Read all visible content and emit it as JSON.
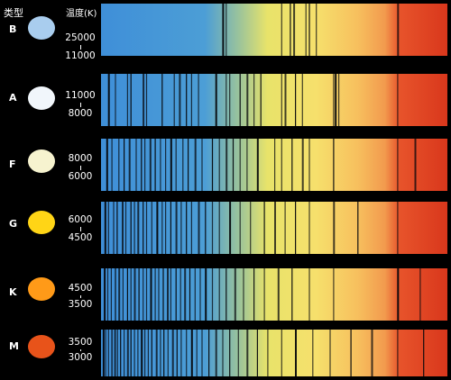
{
  "header": {
    "type_label": "类型",
    "temp_label": "温度(K)"
  },
  "rows": [
    {
      "cls": "B",
      "t_high": "25000",
      "t_low": "11000",
      "star_color": "#a9cdee",
      "lines": [
        0.35,
        0.36,
        0.52,
        0.545,
        0.555,
        0.59,
        0.6,
        0.62,
        0.855
      ]
    },
    {
      "cls": "A",
      "t_high": "11000",
      "t_low": "8000",
      "star_color": "#f1f6fb",
      "lines": [
        0.02,
        0.04,
        0.075,
        0.085,
        0.12,
        0.13,
        0.175,
        0.21,
        0.225,
        0.245,
        0.26,
        0.28,
        0.33,
        0.36,
        0.37,
        0.4,
        0.42,
        0.44,
        0.46,
        0.52,
        0.53,
        0.56,
        0.58,
        0.67,
        0.675,
        0.685,
        0.855
      ]
    },
    {
      "cls": "F",
      "t_high": "8000",
      "t_low": "6000",
      "star_color": "#f6f3cf",
      "lines": [
        0.015,
        0.03,
        0.05,
        0.065,
        0.08,
        0.1,
        0.115,
        0.125,
        0.14,
        0.155,
        0.17,
        0.185,
        0.2,
        0.215,
        0.235,
        0.25,
        0.27,
        0.29,
        0.32,
        0.34,
        0.36,
        0.38,
        0.4,
        0.42,
        0.45,
        0.5,
        0.52,
        0.55,
        0.58,
        0.6,
        0.67,
        0.855,
        0.905
      ]
    },
    {
      "cls": "G",
      "t_high": "6000",
      "t_low": "4500",
      "star_color": "#ffd516",
      "lines": [
        0.01,
        0.02,
        0.035,
        0.045,
        0.06,
        0.07,
        0.085,
        0.095,
        0.105,
        0.12,
        0.13,
        0.145,
        0.16,
        0.175,
        0.185,
        0.2,
        0.215,
        0.23,
        0.245,
        0.26,
        0.28,
        0.3,
        0.32,
        0.34,
        0.37,
        0.4,
        0.43,
        0.47,
        0.5,
        0.53,
        0.56,
        0.6,
        0.67,
        0.74,
        0.855
      ]
    },
    {
      "cls": "K",
      "t_high": "4500",
      "t_low": "3500",
      "star_color": "#ff9a18",
      "lines": [
        0.008,
        0.018,
        0.028,
        0.04,
        0.05,
        0.062,
        0.075,
        0.085,
        0.095,
        0.108,
        0.12,
        0.13,
        0.142,
        0.155,
        0.165,
        0.178,
        0.19,
        0.2,
        0.215,
        0.228,
        0.24,
        0.255,
        0.27,
        0.285,
        0.3,
        0.32,
        0.34,
        0.36,
        0.385,
        0.41,
        0.44,
        0.47,
        0.51,
        0.55,
        0.6,
        0.67,
        0.855,
        0.92
      ]
    },
    {
      "cls": "M",
      "t_high": "3500",
      "t_low": "3000",
      "star_color": "#e8531a",
      "lines": [
        0.005,
        0.012,
        0.02,
        0.03,
        0.038,
        0.046,
        0.055,
        0.065,
        0.075,
        0.085,
        0.095,
        0.105,
        0.115,
        0.125,
        0.135,
        0.145,
        0.158,
        0.17,
        0.18,
        0.192,
        0.205,
        0.218,
        0.23,
        0.245,
        0.26,
        0.275,
        0.29,
        0.31,
        0.33,
        0.35,
        0.37,
        0.395,
        0.42,
        0.45,
        0.48,
        0.52,
        0.56,
        0.61,
        0.66,
        0.72,
        0.78,
        0.855,
        0.93
      ]
    }
  ]
}
